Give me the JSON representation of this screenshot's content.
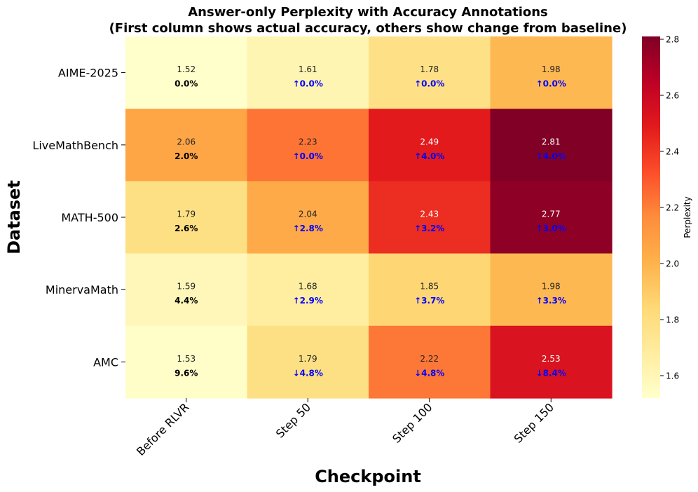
{
  "chart_data": {
    "type": "heatmap",
    "title_lines": [
      "Answer-only Perplexity with Accuracy Annotations",
      "(First column shows actual accuracy, others show change from baseline)"
    ],
    "xlabel": "Checkpoint",
    "ylabel": "Dataset",
    "x_categories": [
      "Before RLVR",
      "Step 50",
      "Step 100",
      "Step 150"
    ],
    "y_categories": [
      "AIME-2025",
      "LiveMathBench",
      "MATH-500",
      "MinervaMath",
      "AMC"
    ],
    "values": [
      [
        1.52,
        1.61,
        1.78,
        1.98
      ],
      [
        2.06,
        2.23,
        2.49,
        2.81
      ],
      [
        1.79,
        2.04,
        2.43,
        2.77
      ],
      [
        1.59,
        1.68,
        1.85,
        1.98
      ],
      [
        1.53,
        1.79,
        2.22,
        2.53
      ]
    ],
    "value_labels": [
      [
        "1.52",
        "1.61",
        "1.78",
        "1.98"
      ],
      [
        "2.06",
        "2.23",
        "2.49",
        "2.81"
      ],
      [
        "1.79",
        "2.04",
        "2.43",
        "2.77"
      ],
      [
        "1.59",
        "1.68",
        "1.85",
        "1.98"
      ],
      [
        "1.53",
        "1.79",
        "2.22",
        "2.53"
      ]
    ],
    "accuracy_annotations": [
      [
        "0.0%",
        "↑0.0%",
        "↑0.0%",
        "↑0.0%"
      ],
      [
        "2.0%",
        "↑0.0%",
        "↑4.0%",
        "↑4.0%"
      ],
      [
        "2.6%",
        "↑2.8%",
        "↑3.2%",
        "↑3.0%"
      ],
      [
        "4.4%",
        "↑2.9%",
        "↑3.7%",
        "↑3.3%"
      ],
      [
        "9.6%",
        "↓4.8%",
        "↓4.8%",
        "↓8.4%"
      ]
    ],
    "colormap": "YlOrRd",
    "colorbar": {
      "label": "Perplexity",
      "range": [
        1.52,
        2.81
      ],
      "ticks": [
        1.6,
        1.8,
        2.0,
        2.2,
        2.4,
        2.6,
        2.8
      ],
      "tick_labels": [
        "1.6",
        "1.8",
        "2.0",
        "2.2",
        "2.4",
        "2.6",
        "2.8"
      ]
    },
    "colors": {
      "baseline_annotation": "#000000",
      "change_annotation": "#0000ff"
    }
  }
}
